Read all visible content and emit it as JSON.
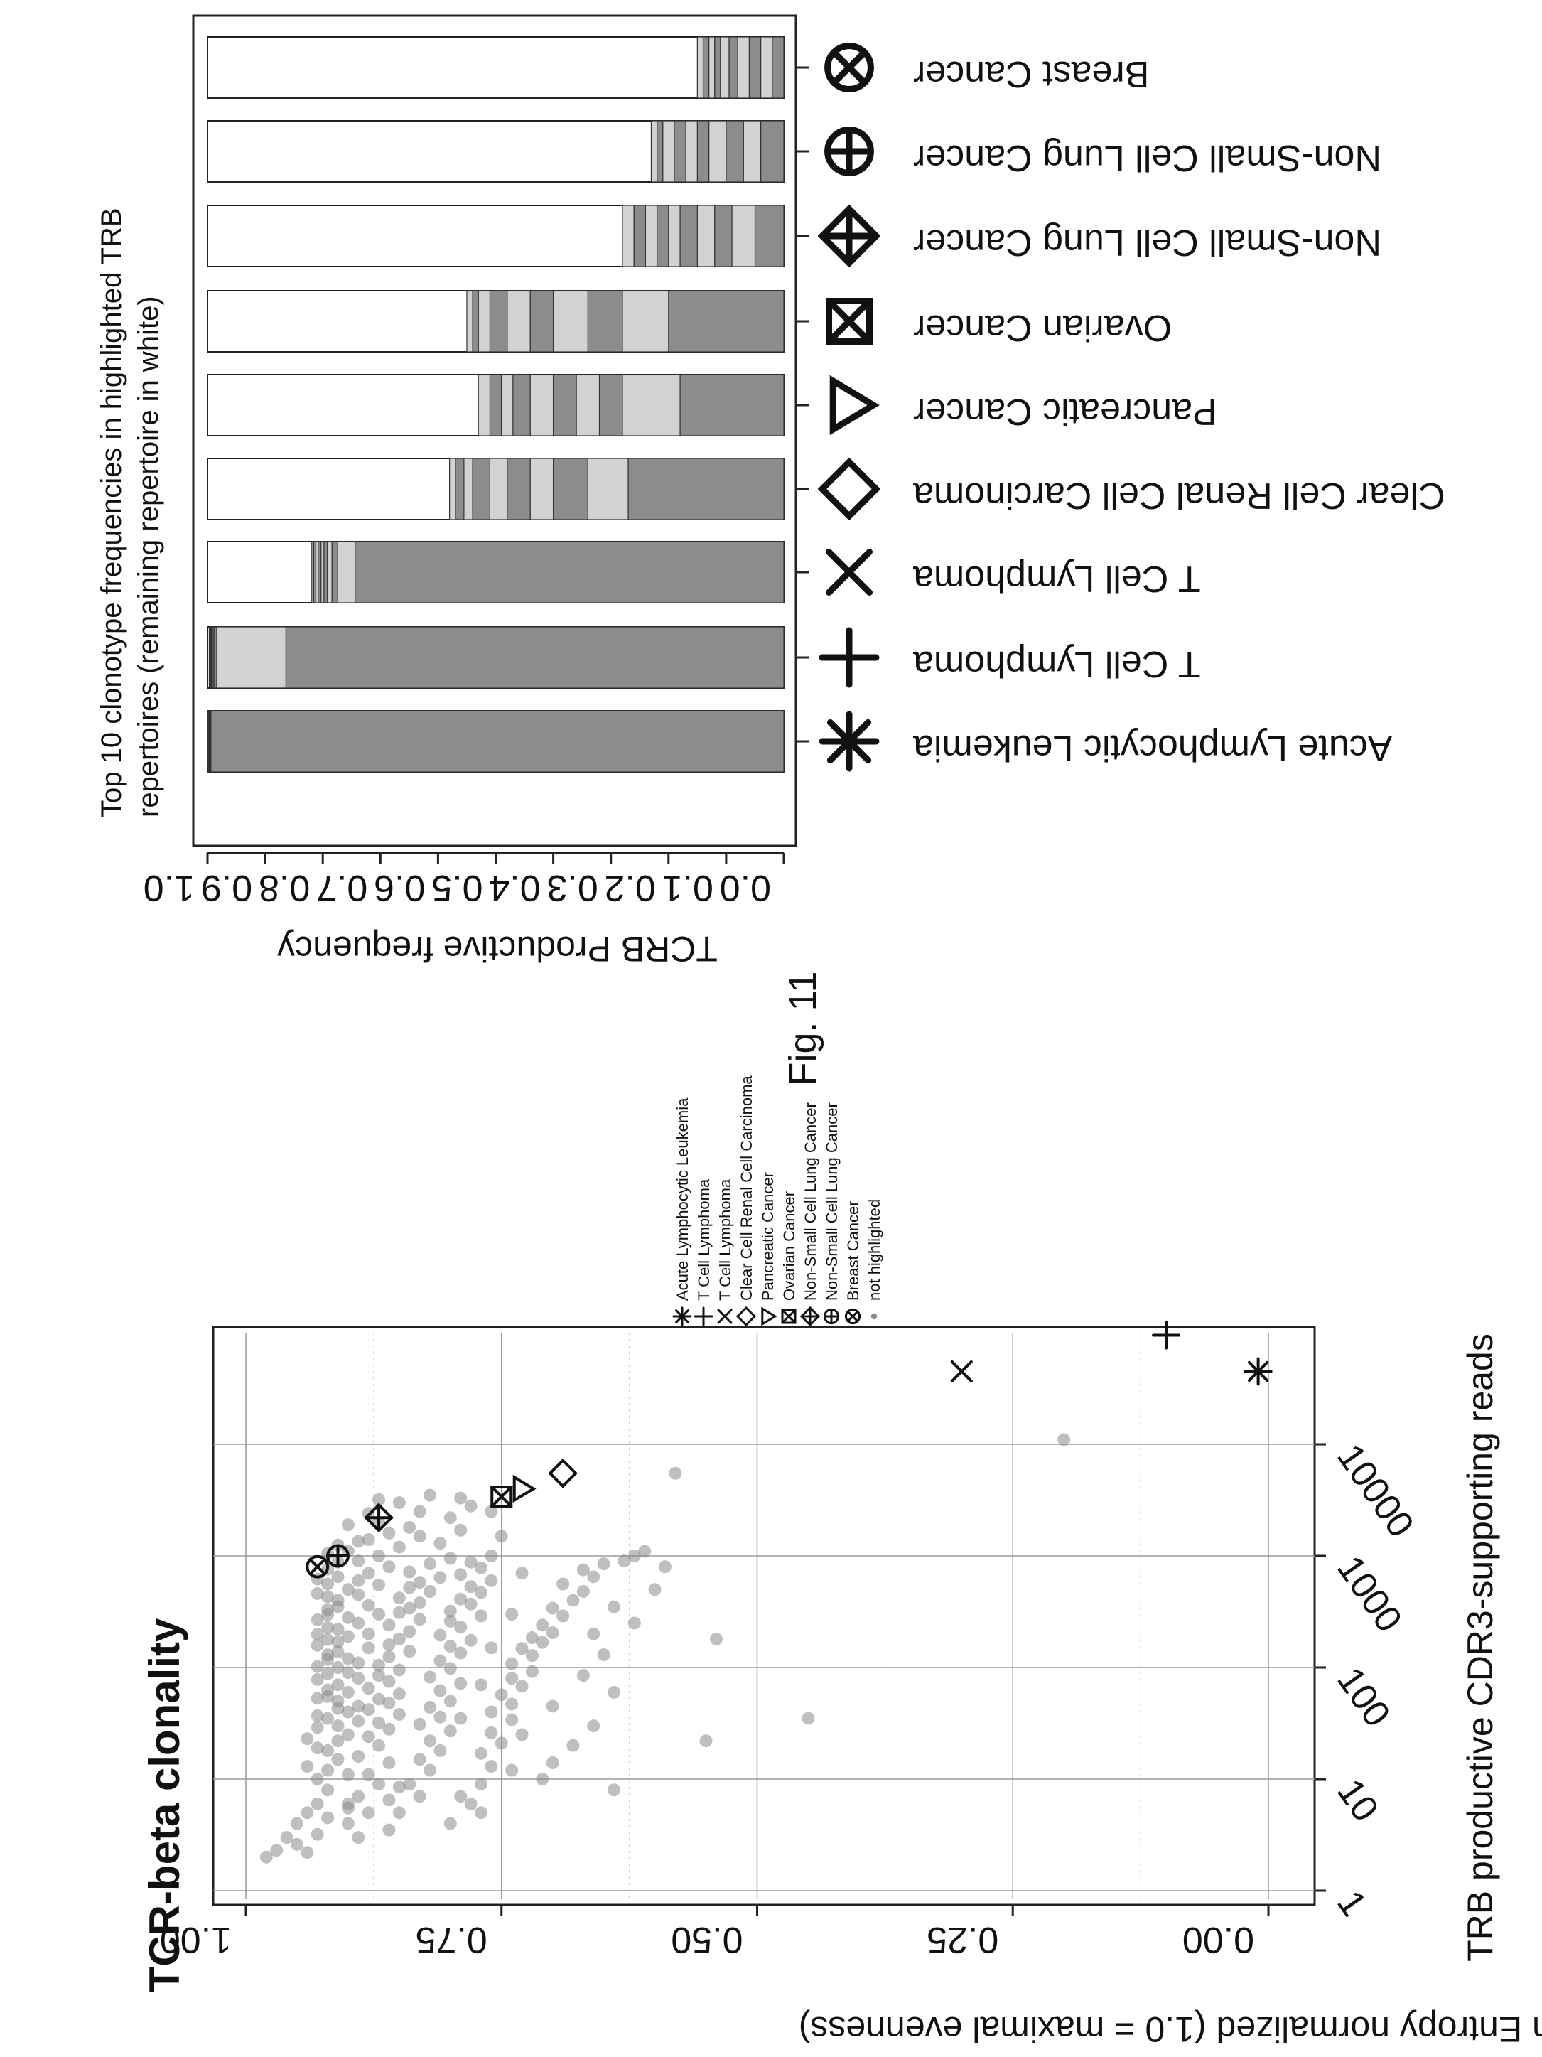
{
  "figure_label": "Fig. 11",
  "colors": {
    "dark_segment": "#8c8c8c",
    "light_segment": "#d2d2d2",
    "remaining": "#ffffff",
    "point": "#8a8a8a"
  },
  "chart_data": [
    {
      "type": "scatter",
      "title": "TCR-beta clonality",
      "xlabel": "TRB productive CDR3-supporting reads",
      "ylabel": "Shannon Entropy normalized (1.0 = maximal evenness)",
      "x_scale": "log",
      "xlim": [
        1,
        100000
      ],
      "ylim": [
        0,
        1.03
      ],
      "x_ticks": [
        "1",
        "10",
        "100",
        "1000",
        "10000"
      ],
      "y_ticks": [
        "0.00",
        "0.25",
        "0.50",
        "0.75",
        "1.00"
      ],
      "grid": true,
      "legend_position": "right",
      "legend": [
        {
          "label": "Acute Lymphocytic Leukemia",
          "symbol": "asterisk-icon"
        },
        {
          "label": "T Cell Lymphoma",
          "symbol": "plus-icon"
        },
        {
          "label": "T Cell Lymphoma",
          "symbol": "cross-icon"
        },
        {
          "label": "Clear Cell Renal Cell Carcinoma",
          "symbol": "diamond-icon"
        },
        {
          "label": "Pancreatic Cancer",
          "symbol": "triangle-icon"
        },
        {
          "label": "Ovarian Cancer",
          "symbol": "boxed-cross-icon"
        },
        {
          "label": "Non-Small Cell Lung Cancer",
          "symbol": "crossed-diamond-icon"
        },
        {
          "label": "Non-Small Cell Lung Cancer",
          "symbol": "crossed-circle-icon"
        },
        {
          "label": "Breast Cancer",
          "symbol": "x-circle-icon"
        },
        {
          "label": "not highlighted",
          "symbol": "dot-icon"
        }
      ],
      "highlighted": [
        {
          "label": "Acute Lymphocytic Leukemia",
          "x": 45000,
          "y": 0.01,
          "symbol": "asterisk-icon"
        },
        {
          "label": "T Cell Lymphoma",
          "x": 95000,
          "y": 0.1,
          "symbol": "plus-icon"
        },
        {
          "label": "T Cell Lymphoma",
          "x": 45000,
          "y": 0.3,
          "symbol": "cross-icon"
        },
        {
          "label": "Clear Cell Renal Cell Carcinoma",
          "x": 5500,
          "y": 0.69,
          "symbol": "diamond-icon"
        },
        {
          "label": "Pancreatic Cancer",
          "x": 4000,
          "y": 0.73,
          "symbol": "triangle-icon"
        },
        {
          "label": "Ovarian Cancer",
          "x": 3400,
          "y": 0.75,
          "symbol": "boxed-cross-icon"
        },
        {
          "label": "Non-Small Cell Lung Cancer",
          "x": 2200,
          "y": 0.87,
          "symbol": "crossed-diamond-icon"
        },
        {
          "label": "Non-Small Cell Lung Cancer",
          "x": 1000,
          "y": 0.91,
          "symbol": "crossed-circle-icon"
        },
        {
          "label": "Breast Cancer",
          "x": 800,
          "y": 0.93,
          "symbol": "x-circle-icon"
        }
      ],
      "background_points": [
        [
          2.3,
          0.97
        ],
        [
          2.6,
          0.95
        ],
        [
          3,
          0.96
        ],
        [
          4,
          0.95
        ],
        [
          5,
          0.94
        ],
        [
          6,
          0.93
        ],
        [
          8,
          0.92
        ],
        [
          10,
          0.93
        ],
        [
          12,
          0.92
        ],
        [
          15,
          0.91
        ],
        [
          18,
          0.92
        ],
        [
          22,
          0.91
        ],
        [
          25,
          0.9
        ],
        [
          30,
          0.91
        ],
        [
          35,
          0.92
        ],
        [
          40,
          0.9
        ],
        [
          45,
          0.89
        ],
        [
          50,
          0.91
        ],
        [
          55,
          0.92
        ],
        [
          60,
          0.9
        ],
        [
          70,
          0.91
        ],
        [
          80,
          0.89
        ],
        [
          90,
          0.9
        ],
        [
          100,
          0.91
        ],
        [
          110,
          0.89
        ],
        [
          120,
          0.9
        ],
        [
          130,
          0.92
        ],
        [
          150,
          0.88
        ],
        [
          170,
          0.91
        ],
        [
          190,
          0.9
        ],
        [
          200,
          0.88
        ],
        [
          220,
          0.91
        ],
        [
          250,
          0.89
        ],
        [
          280,
          0.9
        ],
        [
          300,
          0.87
        ],
        [
          330,
          0.92
        ],
        [
          360,
          0.88
        ],
        [
          400,
          0.91
        ],
        [
          450,
          0.89
        ],
        [
          500,
          0.9
        ],
        [
          550,
          0.87
        ],
        [
          600,
          0.89
        ],
        [
          650,
          0.91
        ],
        [
          700,
          0.88
        ],
        [
          800,
          0.86
        ],
        [
          900,
          0.89
        ],
        [
          1000,
          0.87
        ],
        [
          1100,
          0.9
        ],
        [
          1200,
          0.85
        ],
        [
          1400,
          0.88
        ],
        [
          1600,
          0.86
        ],
        [
          1800,
          0.84
        ],
        [
          2000,
          0.87
        ],
        [
          2500,
          0.83
        ],
        [
          3000,
          0.85
        ],
        [
          3500,
          0.82
        ],
        [
          3,
          0.89
        ],
        [
          4,
          0.9
        ],
        [
          5,
          0.88
        ],
        [
          6,
          0.9
        ],
        [
          7,
          0.89
        ],
        [
          9,
          0.87
        ],
        [
          11,
          0.88
        ],
        [
          14,
          0.86
        ],
        [
          16,
          0.89
        ],
        [
          20,
          0.87
        ],
        [
          24,
          0.88
        ],
        [
          28,
          0.86
        ],
        [
          32,
          0.87
        ],
        [
          38,
          0.85
        ],
        [
          42,
          0.88
        ],
        [
          48,
          0.86
        ],
        [
          52,
          0.87
        ],
        [
          58,
          0.85
        ],
        [
          65,
          0.88
        ],
        [
          75,
          0.86
        ],
        [
          85,
          0.87
        ],
        [
          95,
          0.85
        ],
        [
          105,
          0.87
        ],
        [
          125,
          0.86
        ],
        [
          140,
          0.84
        ],
        [
          160,
          0.86
        ],
        [
          180,
          0.85
        ],
        [
          210,
          0.84
        ],
        [
          240,
          0.86
        ],
        [
          270,
          0.83
        ],
        [
          310,
          0.85
        ],
        [
          340,
          0.84
        ],
        [
          380,
          0.83
        ],
        [
          420,
          0.85
        ],
        [
          480,
          0.82
        ],
        [
          520,
          0.84
        ],
        [
          580,
          0.83
        ],
        [
          640,
          0.81
        ],
        [
          720,
          0.84
        ],
        [
          850,
          0.82
        ],
        [
          950,
          0.8
        ],
        [
          1300,
          0.81
        ],
        [
          1500,
          0.83
        ],
        [
          1700,
          0.79
        ],
        [
          2200,
          0.8
        ],
        [
          2800,
          0.78
        ],
        [
          3300,
          0.79
        ],
        [
          3.5,
          0.86
        ],
        [
          5,
          0.85
        ],
        [
          7,
          0.83
        ],
        [
          9,
          0.84
        ],
        [
          12,
          0.82
        ],
        [
          15,
          0.83
        ],
        [
          18,
          0.81
        ],
        [
          22,
          0.82
        ],
        [
          27,
          0.8
        ],
        [
          31,
          0.83
        ],
        [
          36,
          0.81
        ],
        [
          44,
          0.82
        ],
        [
          50,
          0.8
        ],
        [
          62,
          0.81
        ],
        [
          72,
          0.79
        ],
        [
          82,
          0.82
        ],
        [
          98,
          0.8
        ],
        [
          115,
          0.81
        ],
        [
          135,
          0.79
        ],
        [
          155,
          0.8
        ],
        [
          175,
          0.78
        ],
        [
          195,
          0.81
        ],
        [
          230,
          0.79
        ],
        [
          260,
          0.8
        ],
        [
          290,
          0.77
        ],
        [
          320,
          0.8
        ],
        [
          370,
          0.78
        ],
        [
          410,
          0.79
        ],
        [
          470,
          0.77
        ],
        [
          530,
          0.78
        ],
        [
          600,
          0.76
        ],
        [
          680,
          0.79
        ],
        [
          780,
          0.77
        ],
        [
          880,
          0.78
        ],
        [
          1000,
          0.76
        ],
        [
          6,
          0.78
        ],
        [
          9,
          0.77
        ],
        [
          13,
          0.76
        ],
        [
          17,
          0.77
        ],
        [
          21,
          0.75
        ],
        [
          26,
          0.76
        ],
        [
          34,
          0.74
        ],
        [
          40,
          0.76
        ],
        [
          47,
          0.74
        ],
        [
          57,
          0.75
        ],
        [
          68,
          0.73
        ],
        [
          80,
          0.74
        ],
        [
          92,
          0.72
        ],
        [
          108,
          0.74
        ],
        [
          128,
          0.72
        ],
        [
          148,
          0.73
        ],
        [
          168,
          0.71
        ],
        [
          185,
          0.72
        ],
        [
          205,
          0.7
        ],
        [
          240,
          0.71
        ],
        [
          290,
          0.69
        ],
        [
          340,
          0.7
        ],
        [
          400,
          0.68
        ],
        [
          480,
          0.67
        ],
        [
          560,
          0.69
        ],
        [
          650,
          0.66
        ],
        [
          750,
          0.67
        ],
        [
          850,
          0.65
        ],
        [
          900,
          0.63
        ],
        [
          1000,
          0.62
        ],
        [
          4,
          0.8
        ],
        [
          7,
          0.79
        ],
        [
          10,
          0.71
        ],
        [
          14,
          0.7
        ],
        [
          20,
          0.68
        ],
        [
          30,
          0.66
        ],
        [
          45,
          0.7
        ],
        [
          60,
          0.64
        ],
        [
          85,
          0.67
        ],
        [
          130,
          0.65
        ],
        [
          200,
          0.66
        ],
        [
          250,
          0.62
        ],
        [
          350,
          0.64
        ],
        [
          500,
          0.6
        ],
        [
          800,
          0.59
        ],
        [
          1100,
          0.61
        ],
        [
          8,
          0.64
        ],
        [
          5,
          0.77
        ],
        [
          12,
          0.74
        ],
        [
          25,
          0.73
        ],
        [
          35,
          0.79
        ],
        [
          70,
          0.77
        ],
        [
          150,
          0.76
        ],
        [
          300,
          0.74
        ],
        [
          700,
          0.73
        ],
        [
          1500,
          0.75
        ],
        [
          2500,
          0.76
        ],
        [
          2,
          0.98
        ],
        [
          2.2,
          0.94
        ],
        [
          3.2,
          0.93
        ],
        [
          4.5,
          0.92
        ],
        [
          5.5,
          0.9
        ],
        [
          6.5,
          0.86
        ],
        [
          8.5,
          0.85
        ],
        [
          11,
          0.9
        ],
        [
          13,
          0.94
        ],
        [
          19,
          0.93
        ],
        [
          23,
          0.94
        ],
        [
          29,
          0.93
        ],
        [
          33,
          0.89
        ],
        [
          37,
          0.93
        ],
        [
          43,
          0.91
        ],
        [
          53,
          0.93
        ],
        [
          63,
          0.92
        ],
        [
          78,
          0.93
        ],
        [
          88,
          0.92
        ],
        [
          102,
          0.93
        ],
        [
          118,
          0.92
        ],
        [
          138,
          0.91
        ],
        [
          158,
          0.93
        ],
        [
          178,
          0.92
        ],
        [
          198,
          0.93
        ],
        [
          228,
          0.92
        ],
        [
          268,
          0.93
        ],
        [
          298,
          0.92
        ],
        [
          350,
          0.91
        ],
        [
          430,
          0.92
        ],
        [
          460,
          0.93
        ],
        [
          560,
          0.92
        ],
        [
          620,
          0.93
        ],
        [
          760,
          0.92
        ],
        [
          880,
          0.91
        ],
        [
          1050,
          0.92
        ],
        [
          1250,
          0.91
        ],
        [
          1350,
          0.89
        ],
        [
          1900,
          0.9
        ],
        [
          2400,
          0.88
        ],
        [
          3200,
          0.87
        ],
        [
          22,
          0.55
        ],
        [
          35,
          0.45
        ],
        [
          180,
          0.54
        ],
        [
          11000,
          0.2
        ],
        [
          5500,
          0.58
        ]
      ]
    },
    {
      "type": "bar",
      "stacked": true,
      "orientation": "horizontal",
      "title": "Top 10 clonotype frequencies in highlighted TRB repertoires (remaining repertoire in white)",
      "ylabel": "TCRB Productive frequency",
      "ylim": [
        0,
        1
      ],
      "y_ticks": [
        "0.0",
        "0.1",
        "0.2",
        "0.3",
        "0.4",
        "0.5",
        "0.6",
        "0.7",
        "0.8",
        "0.9",
        "1.0"
      ],
      "categories": [
        "Acute Lymphocytic Leukemia",
        "T Cell Lymphoma",
        "T Cell Lymphoma",
        "Clear Cell Renal Cell Carcinoma",
        "Pancreatic Cancer",
        "Ovarian Cancer",
        "Non-Small Cell Lung Cancer",
        "Non-Small Cell Lung Cancer",
        "Breast Cancer"
      ],
      "category_symbols": [
        "asterisk-icon",
        "plus-icon",
        "cross-icon",
        "diamond-icon",
        "triangle-icon",
        "boxed-cross-icon",
        "crossed-diamond-icon",
        "crossed-circle-icon",
        "x-circle-icon"
      ],
      "top10_frequencies": [
        [
          0.994,
          0.001,
          0.001,
          0.001,
          0.0005,
          0.0005,
          0.0004,
          0.0003,
          0.0003,
          0.0002
        ],
        [
          0.864,
          0.12,
          0.004,
          0.002,
          0.002,
          0.001,
          0.001,
          0.001,
          0.001,
          0.001
        ],
        [
          0.744,
          0.03,
          0.01,
          0.008,
          0.006,
          0.005,
          0.005,
          0.004,
          0.004,
          0.003
        ],
        [
          0.27,
          0.07,
          0.06,
          0.04,
          0.04,
          0.03,
          0.03,
          0.015,
          0.015,
          0.01
        ],
        [
          0.18,
          0.1,
          0.04,
          0.04,
          0.04,
          0.04,
          0.03,
          0.02,
          0.02,
          0.02
        ],
        [
          0.2,
          0.08,
          0.06,
          0.06,
          0.04,
          0.04,
          0.03,
          0.02,
          0.01,
          0.01
        ],
        [
          0.05,
          0.04,
          0.03,
          0.03,
          0.03,
          0.02,
          0.02,
          0.02,
          0.02,
          0.02
        ],
        [
          0.04,
          0.03,
          0.03,
          0.03,
          0.02,
          0.02,
          0.02,
          0.02,
          0.01,
          0.01
        ],
        [
          0.02,
          0.02,
          0.02,
          0.02,
          0.015,
          0.015,
          0.01,
          0.01,
          0.01,
          0.01
        ]
      ],
      "segment_shades": [
        "dark",
        "light",
        "dark",
        "light",
        "dark",
        "light",
        "dark",
        "light",
        "dark",
        "light"
      ]
    }
  ]
}
